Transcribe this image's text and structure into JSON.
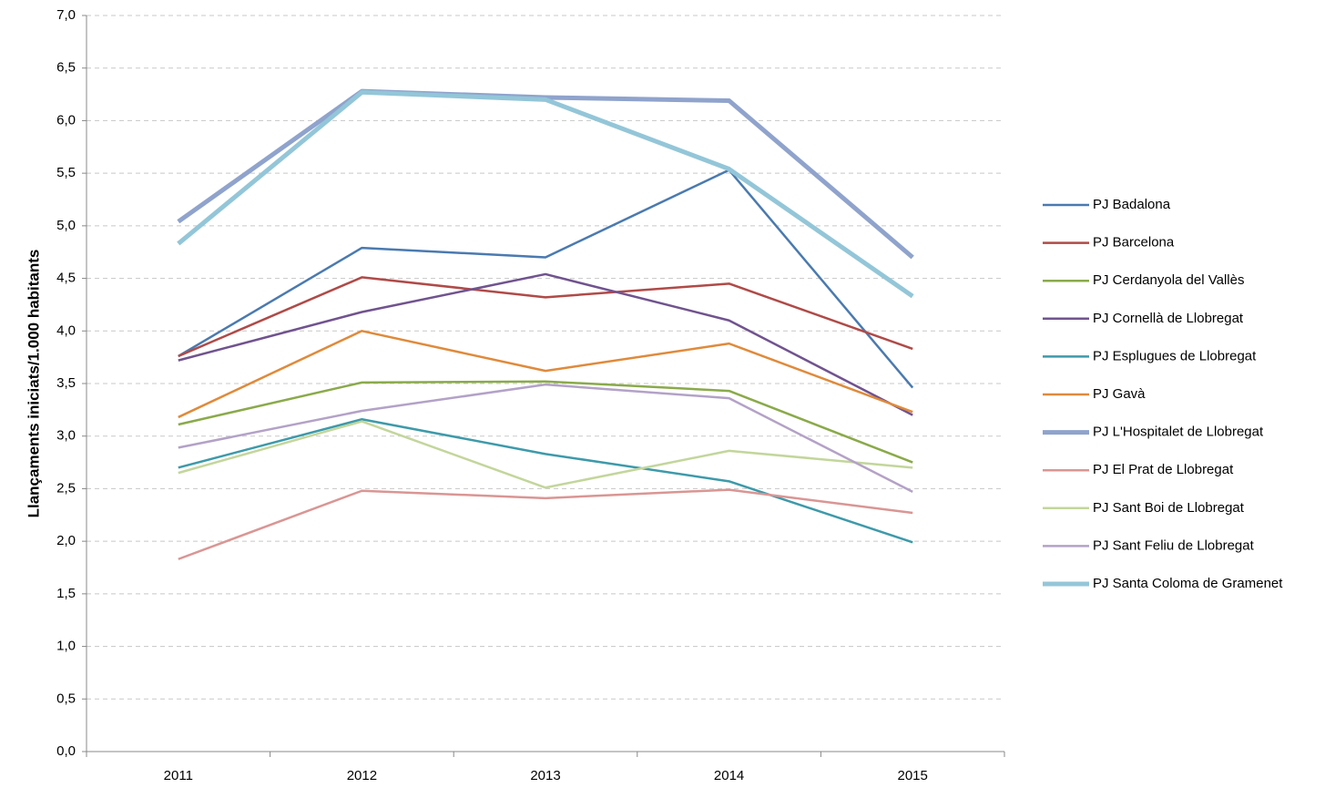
{
  "chart_data": {
    "type": "line",
    "y_label": "Llançaments iniciats/1.000 habitants",
    "categories": [
      "2011",
      "2012",
      "2013",
      "2014",
      "2015"
    ],
    "ylim": [
      0,
      7
    ],
    "yticks": [
      {
        "value": 0,
        "label": "0,0"
      },
      {
        "value": 0.5,
        "label": "0,5"
      },
      {
        "value": 1,
        "label": "1,0"
      },
      {
        "value": 1.5,
        "label": "1,5"
      },
      {
        "value": 2,
        "label": "2,0"
      },
      {
        "value": 2.5,
        "label": "2,5"
      },
      {
        "value": 3,
        "label": "3,0"
      },
      {
        "value": 3.5,
        "label": "3,5"
      },
      {
        "value": 4,
        "label": "4,0"
      },
      {
        "value": 4.5,
        "label": "4,5"
      },
      {
        "value": 5,
        "label": "5,0"
      },
      {
        "value": 5.5,
        "label": "5,5"
      },
      {
        "value": 6,
        "label": "6,0"
      },
      {
        "value": 6.5,
        "label": "6,5"
      },
      {
        "value": 7,
        "label": "7,0"
      }
    ],
    "grid": true,
    "legend": "right",
    "series": [
      {
        "name": "PJ Badalona",
        "color": "#4a7ab0",
        "width": 2.5,
        "values": [
          3.76,
          4.79,
          4.7,
          5.53,
          3.46
        ]
      },
      {
        "name": "PJ Barcelona",
        "color": "#b04a47",
        "width": 2.5,
        "values": [
          3.76,
          4.51,
          4.32,
          4.45,
          3.83
        ]
      },
      {
        "name": "PJ Cerdanyola del Vallès",
        "color": "#8aaa4a",
        "width": 2.5,
        "values": [
          3.11,
          3.51,
          3.52,
          3.43,
          2.75
        ]
      },
      {
        "name": "PJ Cornellà de Llobregat",
        "color": "#70538f",
        "width": 2.5,
        "values": [
          3.72,
          4.18,
          4.54,
          4.1,
          3.2
        ]
      },
      {
        "name": "PJ Esplugues de Llobregat",
        "color": "#3d9aaa",
        "width": 2.5,
        "values": [
          2.7,
          3.16,
          2.83,
          2.57,
          1.99
        ]
      },
      {
        "name": "PJ Gavà",
        "color": "#e08a3a",
        "width": 2.5,
        "values": [
          3.18,
          4.0,
          3.62,
          3.88,
          3.23
        ]
      },
      {
        "name": "PJ L'Hospitalet de Llobregat",
        "color": "#8fa3cc",
        "width": 5,
        "values": [
          5.04,
          6.28,
          6.22,
          6.19,
          4.7
        ]
      },
      {
        "name": "PJ El Prat de Llobregat",
        "color": "#d99694",
        "width": 2.5,
        "values": [
          1.83,
          2.48,
          2.41,
          2.49,
          2.27
        ]
      },
      {
        "name": "PJ Sant Boi de Llobregat",
        "color": "#c3d69b",
        "width": 2.5,
        "values": [
          2.65,
          3.14,
          2.51,
          2.86,
          2.7
        ]
      },
      {
        "name": "PJ Sant Feliu de Llobregat",
        "color": "#b3a2c7",
        "width": 2.5,
        "values": [
          2.89,
          3.24,
          3.49,
          3.36,
          2.47
        ]
      },
      {
        "name": "PJ Santa Coloma de Gramenet",
        "color": "#93c6d8",
        "width": 5,
        "values": [
          4.83,
          6.27,
          6.2,
          5.54,
          4.33
        ]
      }
    ]
  }
}
